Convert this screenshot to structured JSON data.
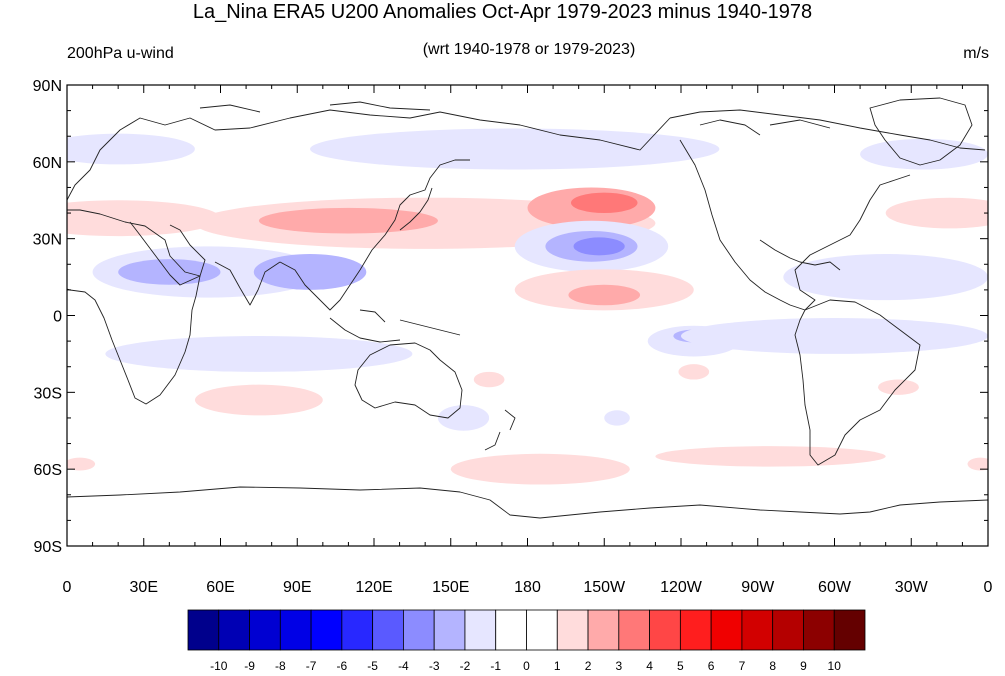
{
  "title": "La_Nina ERA5 U200 Anomalies Oct-Apr 1979-2023 minus 1940-1978",
  "subtitle": "(wrt 1940-1978 or 1979-2023)",
  "left_string": "200hPa u-wind",
  "right_string": "m/s",
  "lat_ticks": [
    {
      "value": 90,
      "label": "90N"
    },
    {
      "value": 60,
      "label": "60N"
    },
    {
      "value": 30,
      "label": "30N"
    },
    {
      "value": 0,
      "label": "0"
    },
    {
      "value": -30,
      "label": "30S"
    },
    {
      "value": -60,
      "label": "60S"
    },
    {
      "value": -90,
      "label": "90S"
    }
  ],
  "lon_ticks": [
    {
      "value": 0,
      "label": "0"
    },
    {
      "value": 30,
      "label": "30E"
    },
    {
      "value": 60,
      "label": "60E"
    },
    {
      "value": 90,
      "label": "90E"
    },
    {
      "value": 120,
      "label": "120E"
    },
    {
      "value": 150,
      "label": "150E"
    },
    {
      "value": 180,
      "label": "180"
    },
    {
      "value": 210,
      "label": "150W"
    },
    {
      "value": 240,
      "label": "120W"
    },
    {
      "value": 270,
      "label": "90W"
    },
    {
      "value": 300,
      "label": "60W"
    },
    {
      "value": 330,
      "label": "30W"
    },
    {
      "value": 360,
      "label": "0"
    }
  ],
  "colorbar": {
    "levels": [
      "-10",
      "-9",
      "-8",
      "-7",
      "-6",
      "-5",
      "-4",
      "-3",
      "-2",
      "-1",
      "0",
      "1",
      "2",
      "3",
      "4",
      "5",
      "6",
      "7",
      "8",
      "9",
      "10"
    ],
    "colors": [
      "#00008c",
      "#0000b4",
      "#0000d2",
      "#0000e6",
      "#0000ff",
      "#2828ff",
      "#5a5aff",
      "#8c8cff",
      "#b4b4ff",
      "#e6e6ff",
      "#ffffff",
      "#ffffff",
      "#ffdcdc",
      "#ffaaaa",
      "#ff7878",
      "#ff4646",
      "#ff1e1e",
      "#f00000",
      "#d20000",
      "#b40000",
      "#8c0000",
      "#640000"
    ]
  },
  "anomaly_regions": [
    {
      "lon": 140,
      "lat": 36,
      "rlon": 90,
      "rlat": 10,
      "color": "#ffdcdc"
    },
    {
      "lon": 110,
      "lat": 37,
      "rlon": 35,
      "rlat": 5,
      "color": "#ffaaaa"
    },
    {
      "lon": 205,
      "lat": 42,
      "rlon": 25,
      "rlat": 8,
      "color": "#ffaaaa"
    },
    {
      "lon": 210,
      "lat": 44,
      "rlon": 13,
      "rlat": 4,
      "color": "#ff7878"
    },
    {
      "lon": 20,
      "lat": 38,
      "rlon": 40,
      "rlat": 7,
      "color": "#ffdcdc"
    },
    {
      "lon": 345,
      "lat": 40,
      "rlon": 25,
      "rlat": 6,
      "color": "#ffdcdc"
    },
    {
      "lon": 205,
      "lat": 27,
      "rlon": 30,
      "rlat": 10,
      "color": "#e6e6ff"
    },
    {
      "lon": 205,
      "lat": 27,
      "rlon": 18,
      "rlat": 6,
      "color": "#b4b4ff"
    },
    {
      "lon": 208,
      "lat": 27,
      "rlon": 10,
      "rlat": 3.5,
      "color": "#8c8cff"
    },
    {
      "lon": 55,
      "lat": 17,
      "rlon": 45,
      "rlat": 10,
      "color": "#e6e6ff"
    },
    {
      "lon": 40,
      "lat": 17,
      "rlon": 20,
      "rlat": 5,
      "color": "#b4b4ff"
    },
    {
      "lon": 95,
      "lat": 17,
      "rlon": 22,
      "rlat": 7,
      "color": "#b4b4ff"
    },
    {
      "lon": 320,
      "lat": 15,
      "rlon": 40,
      "rlat": 9,
      "color": "#e6e6ff"
    },
    {
      "lon": 210,
      "lat": 10,
      "rlon": 35,
      "rlat": 8,
      "color": "#ffdcdc"
    },
    {
      "lon": 210,
      "lat": 8,
      "rlon": 14,
      "rlat": 4,
      "color": "#ffaaaa"
    },
    {
      "lon": 245,
      "lat": -10,
      "rlon": 18,
      "rlat": 6,
      "color": "#e6e6ff"
    },
    {
      "lon": 245,
      "lat": -8,
      "rlon": 8,
      "rlat": 2.5,
      "color": "#b4b4ff"
    },
    {
      "lon": 75,
      "lat": -15,
      "rlon": 60,
      "rlat": 7,
      "color": "#e6e6ff"
    },
    {
      "lon": 300,
      "lat": -8,
      "rlon": 60,
      "rlat": 7,
      "color": "#e6e6ff"
    },
    {
      "lon": 175,
      "lat": 65,
      "rlon": 80,
      "rlat": 8,
      "color": "#e6e6ff"
    },
    {
      "lon": 20,
      "lat": 65,
      "rlon": 30,
      "rlat": 6,
      "color": "#e6e6ff"
    },
    {
      "lon": 335,
      "lat": 63,
      "rlon": 25,
      "rlat": 6,
      "color": "#e6e6ff"
    },
    {
      "lon": 75,
      "lat": -33,
      "rlon": 25,
      "rlat": 6,
      "color": "#ffdcdc"
    },
    {
      "lon": 185,
      "lat": -60,
      "rlon": 35,
      "rlat": 6,
      "color": "#ffdcdc"
    },
    {
      "lon": 275,
      "lat": -55,
      "rlon": 45,
      "rlat": 4,
      "color": "#ffdcdc"
    },
    {
      "lon": 245,
      "lat": -22,
      "rlon": 6,
      "rlat": 3,
      "color": "#ffdcdc"
    },
    {
      "lon": 325,
      "lat": -28,
      "rlon": 8,
      "rlat": 3,
      "color": "#ffdcdc"
    },
    {
      "lon": 165,
      "lat": -25,
      "rlon": 6,
      "rlat": 3,
      "color": "#ffdcdc"
    },
    {
      "lon": 5,
      "lat": -58,
      "rlon": 6,
      "rlat": 2.5,
      "color": "#ffdcdc"
    },
    {
      "lon": 357,
      "lat": -58,
      "rlon": 5,
      "rlat": 2.5,
      "color": "#ffdcdc"
    },
    {
      "lon": 155,
      "lat": -40,
      "rlon": 10,
      "rlat": 5,
      "color": "#e6e6ff"
    },
    {
      "lon": 215,
      "lat": -40,
      "rlon": 5,
      "rlat": 3,
      "color": "#e6e6ff"
    }
  ]
}
